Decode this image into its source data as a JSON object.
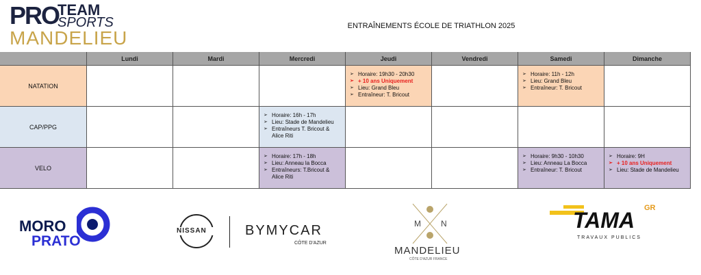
{
  "logo": {
    "pro": "PRO",
    "team": "TEAM",
    "sports": "SPORTS",
    "city": "MANDELIEU"
  },
  "title": "ENTRAÎNEMENTS ÉCOLE DE TRIATHLON 2025",
  "table": {
    "columns": [
      "Lundi",
      "Mardi",
      "Mercredi",
      "Jeudi",
      "Vendredi",
      "Samedi",
      "Dimanche"
    ],
    "rows": [
      {
        "label": "NATATION",
        "color": "#fbd5b5",
        "cells": [
          null,
          null,
          null,
          {
            "lines": [
              {
                "text": "Horaire: 19h30 - 20h30"
              },
              {
                "text": "+ 10 ans Uniquement",
                "color": "#e8201e"
              },
              {
                "text": "Lieu: Grand Bleu"
              },
              {
                "text": "Entraîneur: T. Bricout"
              }
            ]
          },
          null,
          {
            "lines": [
              {
                "text": "Horaire: 11h - 12h"
              },
              {
                "text": "Lieu: Grand Bleu"
              },
              {
                "text": "Entraîneur: T. Bricout"
              }
            ]
          },
          null
        ]
      },
      {
        "label": "CAP/PPG",
        "color": "#dce6f1",
        "cells": [
          null,
          null,
          {
            "lines": [
              {
                "text": "Horaire: 16h - 17h"
              },
              {
                "text": "Lieu: Stade de Mandelieu"
              },
              {
                "text": "Entraîneurs T. Bricout & Alice Riti"
              }
            ]
          },
          null,
          null,
          null,
          null
        ]
      },
      {
        "label": "VELO",
        "color": "#ccc0da",
        "cells": [
          null,
          null,
          {
            "lines": [
              {
                "text": "Horaire: 17h - 18h"
              },
              {
                "text": "Lieu: Anneau la Bocca"
              },
              {
                "text": "Entraîneurs: T.Bricout & Alice Riti"
              }
            ]
          },
          null,
          null,
          {
            "lines": [
              {
                "text": "Horaire: 9h30 - 10h30"
              },
              {
                "text": "Lieu: Anneau La Bocca"
              },
              {
                "text": "Entraîneur: T. Bricout"
              }
            ]
          },
          {
            "lines": [
              {
                "text": "Horaire: 9H"
              },
              {
                "text": "+ 10 ans Uniquement",
                "color": "#e8201e"
              },
              {
                "text": "Lieu: Stade de Mandelieu"
              }
            ]
          }
        ]
      }
    ]
  },
  "sponsors": [
    {
      "name": "MORO",
      "name2": "PRATO"
    },
    {
      "brand": "NISSAN",
      "dealer": "BYMYCAR",
      "region": "CÔTE D'AZUR"
    },
    {
      "left": "M",
      "right": "N",
      "name": "MANDELIEU",
      "tagline": "CÔTE D'AZUR FRANCE"
    },
    {
      "name": "TAMA",
      "badge": "GR",
      "tagline": "TRAVAUX PUBLICS"
    }
  ]
}
